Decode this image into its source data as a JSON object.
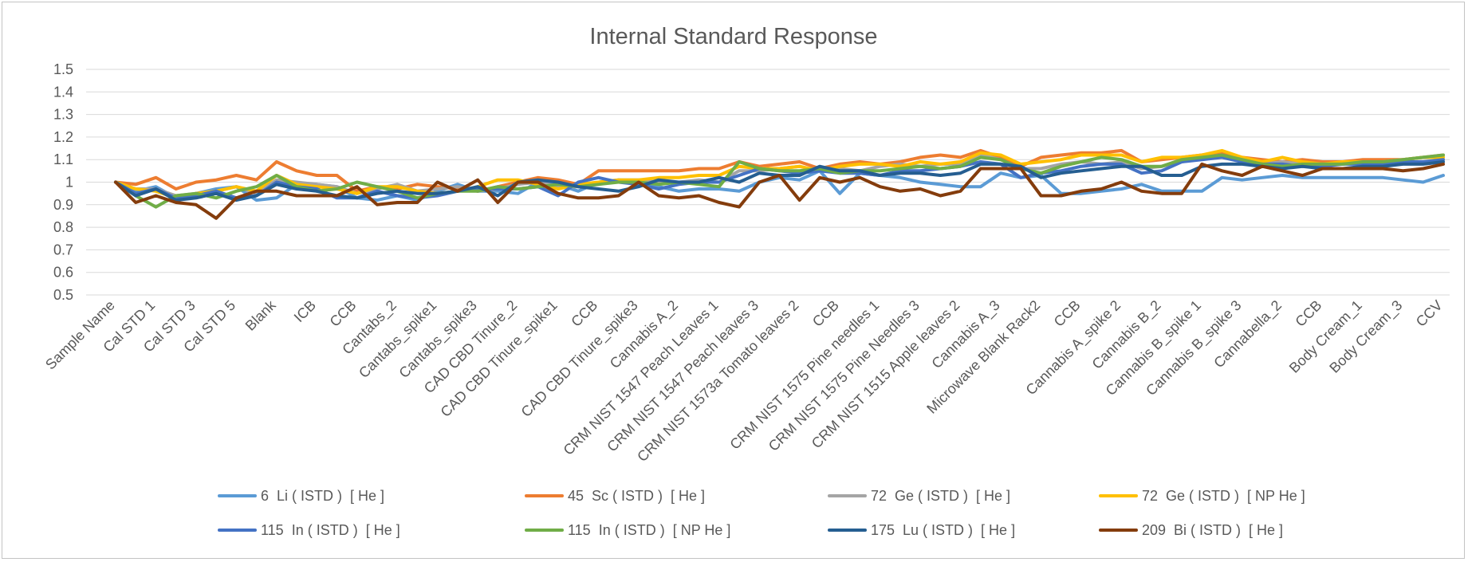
{
  "chart_data": {
    "type": "line",
    "title": "Internal Standard Response",
    "xlabel": "",
    "ylabel": "",
    "ylim": [
      0.5,
      1.5
    ],
    "ystep": 0.1,
    "y_tick_labels": [
      "0.5",
      "0.6",
      "0.7",
      "0.8",
      "0.9",
      "1",
      "1.1",
      "1.2",
      "1.3",
      "1.4",
      "1.5"
    ],
    "grid": true,
    "legend_position": "bottom",
    "categories": [
      "Sample Name",
      "Cal STD 1",
      "Cal STD 3",
      "Cal STD 5",
      "Blank",
      "ICB",
      "CCB",
      "Cantabs_2",
      "Cantabs_spike1",
      "Cantabs_spike3",
      "CAD CBD Tinure_2",
      "CAD CBD Tinure_spike1",
      "CCB",
      "CAD CBD Tinure_spike3",
      "Cannabis A_2",
      "CRM NIST 1547 Peach Leaves 1",
      "CRM NIST 1547 Peach leaves 3",
      "CRM NIST 1573a Tomato leaves 2",
      "CCB",
      "CRM NIST 1575 Pine needles 1",
      "CRM NIST 1575 Pine Needles 3",
      "CRM NIST 1515 Apple leaves 2",
      "Cannabis A_3",
      "Microwave Blank Rack2",
      "CCB",
      "Cannabis A_spike 2",
      "Cannabis B_2",
      "Cannabis B_spike 1",
      "Cannabis B_spike 3",
      "Cannabella_2",
      "CCB",
      "Body Cream_1",
      "Body Cream_3",
      "CCV"
    ],
    "x": [
      1,
      2,
      3,
      4,
      5,
      6,
      7,
      8,
      9,
      10,
      11,
      12,
      13,
      14,
      15,
      16,
      17,
      18,
      19,
      20,
      21,
      22,
      23,
      24,
      25,
      26,
      27,
      28,
      29,
      30,
      31,
      32,
      33,
      34,
      35,
      36,
      37,
      38,
      39,
      40,
      41,
      42,
      43,
      44,
      45,
      46,
      47,
      48,
      49,
      50,
      51,
      52,
      53,
      54,
      55,
      56,
      57,
      58,
      59,
      60,
      61,
      62,
      63,
      64,
      65,
      66,
      67
    ],
    "category_x": [
      1,
      3,
      5,
      7,
      9,
      11,
      13,
      15,
      17,
      19,
      21,
      23,
      25,
      27,
      29,
      31,
      33,
      35,
      37,
      39,
      41,
      43,
      45,
      47,
      49,
      51,
      53,
      55,
      57,
      59,
      61,
      63,
      65,
      67
    ],
    "series": [
      {
        "name": "6  Li ( ISTD )  [ He ]",
        "color": "#5b9bd5",
        "values": [
          1.0,
          0.96,
          0.98,
          0.93,
          0.95,
          0.97,
          0.98,
          0.92,
          0.93,
          0.99,
          0.99,
          0.98,
          0.93,
          0.92,
          0.94,
          0.92,
          0.96,
          0.99,
          0.96,
          0.96,
          0.95,
          1.0,
          0.99,
          0.96,
          1.0,
          1.01,
          1.0,
          0.98,
          0.96,
          0.97,
          0.97,
          0.96,
          1.0,
          1.02,
          1.01,
          1.05,
          0.95,
          1.04,
          1.03,
          1.02,
          1.0,
          0.99,
          0.98,
          0.98,
          1.04,
          1.02,
          1.03,
          0.95,
          0.95,
          0.96,
          0.97,
          0.99,
          0.96,
          0.96,
          0.96,
          1.02,
          1.01,
          1.02,
          1.03,
          1.02,
          1.02,
          1.02,
          1.02,
          1.02,
          1.01,
          1.0,
          1.03
        ]
      },
      {
        "name": "45  Sc ( ISTD )  [ He ]",
        "color": "#ed7d31",
        "values": [
          1.0,
          0.99,
          1.02,
          0.97,
          1.0,
          1.01,
          1.03,
          1.01,
          1.09,
          1.05,
          1.03,
          1.03,
          0.96,
          0.98,
          0.97,
          0.99,
          0.98,
          0.97,
          0.96,
          0.98,
          1.0,
          1.02,
          1.01,
          0.99,
          1.05,
          1.05,
          1.05,
          1.05,
          1.05,
          1.06,
          1.06,
          1.09,
          1.07,
          1.08,
          1.09,
          1.06,
          1.08,
          1.09,
          1.08,
          1.09,
          1.11,
          1.12,
          1.11,
          1.14,
          1.11,
          1.07,
          1.11,
          1.12,
          1.13,
          1.13,
          1.14,
          1.09,
          1.1,
          1.11,
          1.12,
          1.13,
          1.11,
          1.1,
          1.09,
          1.1,
          1.09,
          1.09,
          1.1,
          1.1,
          1.1,
          1.11,
          1.12
        ]
      },
      {
        "name": "72  Ge ( ISTD )  [ He ]",
        "color": "#a5a5a5",
        "values": [
          1.0,
          0.97,
          0.97,
          0.94,
          0.95,
          0.96,
          0.98,
          0.95,
          1.01,
          1.0,
          0.99,
          0.98,
          0.95,
          0.97,
          0.99,
          0.96,
          0.97,
          0.98,
          0.96,
          0.97,
          0.99,
          1.0,
          0.98,
          0.98,
          0.99,
          1.01,
          1.01,
          1.0,
          1.0,
          1.01,
          1.0,
          1.05,
          1.05,
          1.06,
          1.07,
          1.05,
          1.06,
          1.05,
          1.07,
          1.08,
          1.07,
          1.08,
          1.08,
          1.12,
          1.1,
          1.06,
          1.06,
          1.08,
          1.09,
          1.08,
          1.09,
          1.06,
          1.07,
          1.09,
          1.11,
          1.12,
          1.09,
          1.08,
          1.09,
          1.08,
          1.08,
          1.08,
          1.09,
          1.09,
          1.1,
          1.11,
          1.11
        ]
      },
      {
        "name": "72  Ge ( ISTD )  [ NP He ]",
        "color": "#ffc000",
        "values": [
          1.0,
          0.97,
          0.96,
          0.93,
          0.95,
          0.96,
          0.98,
          0.96,
          1.03,
          0.99,
          0.98,
          0.97,
          0.95,
          0.98,
          0.98,
          0.96,
          0.95,
          0.96,
          0.98,
          1.01,
          1.01,
          0.99,
          0.97,
          0.99,
          1.0,
          1.01,
          1.01,
          1.02,
          1.02,
          1.03,
          1.03,
          1.07,
          1.06,
          1.06,
          1.07,
          1.05,
          1.07,
          1.08,
          1.08,
          1.07,
          1.09,
          1.08,
          1.09,
          1.13,
          1.12,
          1.08,
          1.09,
          1.1,
          1.12,
          1.12,
          1.12,
          1.09,
          1.11,
          1.11,
          1.12,
          1.14,
          1.11,
          1.09,
          1.11,
          1.09,
          1.08,
          1.09,
          1.09,
          1.09,
          1.1,
          1.11,
          1.11
        ]
      },
      {
        "name": "115  In ( ISTD )  [ He ]",
        "color": "#4472c4",
        "values": [
          1.0,
          0.95,
          0.97,
          0.93,
          0.94,
          0.96,
          0.93,
          0.94,
          1.0,
          0.98,
          0.97,
          0.93,
          0.93,
          0.96,
          0.94,
          0.93,
          0.94,
          0.96,
          0.97,
          0.97,
          0.97,
          0.98,
          0.94,
          1.0,
          1.02,
          1.0,
          0.99,
          0.97,
          0.99,
          1.0,
          1.0,
          1.03,
          1.06,
          1.05,
          1.04,
          1.05,
          1.04,
          1.04,
          1.03,
          1.05,
          1.05,
          1.06,
          1.07,
          1.09,
          1.08,
          1.02,
          1.04,
          1.05,
          1.07,
          1.08,
          1.08,
          1.04,
          1.05,
          1.09,
          1.1,
          1.11,
          1.09,
          1.08,
          1.08,
          1.07,
          1.07,
          1.08,
          1.08,
          1.08,
          1.09,
          1.09,
          1.1
        ]
      },
      {
        "name": "115  In ( ISTD )  [ NP He ]",
        "color": "#70ad47",
        "values": [
          1.0,
          0.94,
          0.89,
          0.94,
          0.95,
          0.93,
          0.96,
          0.98,
          1.03,
          0.98,
          0.96,
          0.97,
          1.0,
          0.98,
          0.96,
          0.93,
          0.95,
          0.96,
          0.96,
          0.98,
          0.97,
          0.98,
          0.99,
          0.98,
          0.99,
          1.0,
          1.0,
          0.99,
          1.0,
          0.99,
          0.98,
          1.09,
          1.06,
          1.05,
          1.05,
          1.06,
          1.04,
          1.05,
          1.05,
          1.06,
          1.07,
          1.06,
          1.07,
          1.11,
          1.1,
          1.06,
          1.04,
          1.07,
          1.09,
          1.11,
          1.1,
          1.07,
          1.07,
          1.1,
          1.11,
          1.12,
          1.1,
          1.08,
          1.07,
          1.08,
          1.08,
          1.08,
          1.09,
          1.09,
          1.1,
          1.11,
          1.12
        ]
      },
      {
        "name": "175  Lu ( ISTD )  [ He ]",
        "color": "#255e91",
        "values": [
          1.0,
          0.94,
          0.97,
          0.92,
          0.93,
          0.95,
          0.92,
          0.94,
          0.99,
          0.97,
          0.96,
          0.94,
          0.93,
          0.95,
          0.96,
          0.95,
          0.95,
          0.96,
          0.98,
          0.94,
          1.0,
          1.01,
          1.0,
          0.98,
          0.97,
          0.96,
          0.98,
          1.01,
          1.0,
          1.0,
          1.02,
          1.0,
          1.04,
          1.03,
          1.03,
          1.07,
          1.05,
          1.05,
          1.03,
          1.04,
          1.04,
          1.03,
          1.04,
          1.08,
          1.08,
          1.07,
          1.02,
          1.04,
          1.05,
          1.06,
          1.07,
          1.07,
          1.03,
          1.03,
          1.07,
          1.08,
          1.08,
          1.07,
          1.06,
          1.07,
          1.06,
          1.06,
          1.07,
          1.07,
          1.08,
          1.08,
          1.09
        ]
      },
      {
        "name": "209  Bi ( ISTD )  [ He ]",
        "color": "#843c0c",
        "values": [
          1.0,
          0.91,
          0.94,
          0.91,
          0.9,
          0.84,
          0.93,
          0.96,
          0.96,
          0.94,
          0.94,
          0.94,
          0.98,
          0.9,
          0.91,
          0.91,
          1.0,
          0.96,
          1.01,
          0.91,
          1.0,
          1.0,
          0.95,
          0.93,
          0.93,
          0.94,
          1.0,
          0.94,
          0.93,
          0.94,
          0.91,
          0.89,
          1.0,
          1.03,
          0.92,
          1.02,
          1.0,
          1.02,
          0.98,
          0.96,
          0.97,
          0.94,
          0.96,
          1.06,
          1.06,
          1.06,
          0.94,
          0.94,
          0.96,
          0.97,
          1.0,
          0.96,
          0.95,
          0.95,
          1.08,
          1.05,
          1.03,
          1.07,
          1.05,
          1.03,
          1.06,
          1.06,
          1.06,
          1.06,
          1.05,
          1.06,
          1.08
        ]
      }
    ]
  }
}
